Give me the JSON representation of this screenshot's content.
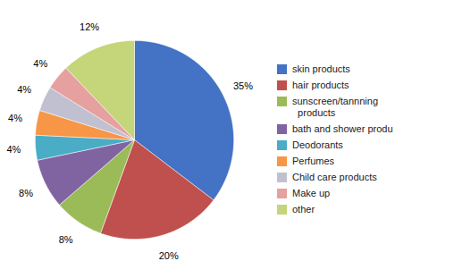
{
  "chart_data": {
    "type": "pie",
    "categories": [
      "skin products",
      "hair products",
      "sunscreen/tannning\n  products",
      "bath and shower produ",
      "Deodorants",
      "Perfumes",
      "Child care products",
      "Make up",
      "other"
    ],
    "values": [
      35,
      20,
      8,
      8,
      4,
      4,
      4,
      4,
      12
    ],
    "value_labels": [
      "35%",
      "20%",
      "8%",
      "8%",
      "4%",
      "4%",
      "4%",
      "4%",
      "12%"
    ],
    "colors": [
      "#4472C4",
      "#C0504D",
      "#9BBB59",
      "#8064A2",
      "#4BACC6",
      "#F79646",
      "#C0C0D0",
      "#E6A0A0",
      "#C4D57A"
    ],
    "data_labels": true,
    "legend": "right"
  }
}
